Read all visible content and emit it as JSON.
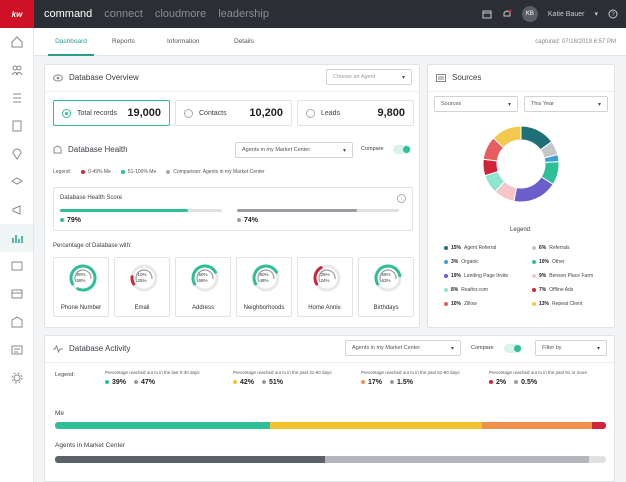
{
  "topbar": {
    "logo": "kw",
    "nav": [
      "command",
      "connect",
      "cloudmore",
      "leadership"
    ],
    "user": "Katie Bauer",
    "initials": "KB"
  },
  "tabs": [
    "Dashboard",
    "Reports",
    "Information",
    "Details"
  ],
  "captured": "captured: 07/18/2019 6:57 PM",
  "overview": {
    "title": "Database Overview",
    "agent_select": "Choose an Agent",
    "total_label": "Total records",
    "total_value": "19,000",
    "contacts_label": "Contacts",
    "contacts_value": "10,200",
    "leads_label": "Leads",
    "leads_value": "9,800"
  },
  "health": {
    "title": "Database Health",
    "select": "Agents in my Market Center",
    "compare": "Compare",
    "legend_label": "Legend:",
    "legend_items": [
      "0-49% Me",
      "51-100% Me",
      "Comparison: Agents in my Market Center"
    ],
    "score_title": "Database Health Score",
    "score_me": "79%",
    "score_cmp": "74%",
    "score_me_fraction": 0.79,
    "score_cmp_fraction": 0.74,
    "with_title": "Percentage of Database with:",
    "gauges": [
      {
        "label": "Phone Number",
        "a": "90%",
        "b": "58%",
        "color": "#2fbf98",
        "frac": 0.9
      },
      {
        "label": "Email",
        "a": "10%",
        "b": "25%",
        "color": "#d0243b",
        "frac": 0.1
      },
      {
        "label": "Address",
        "a": "50%",
        "b": "58%",
        "color": "#2fbf98",
        "frac": 0.5
      },
      {
        "label": "Neighborhoods",
        "a": "50%",
        "b": "48%",
        "color": "#2fbf98",
        "frac": 0.5
      },
      {
        "label": "Home Anniv.",
        "a": "25%",
        "b": "24%",
        "color": "#d0243b",
        "frac": 0.25
      },
      {
        "label": "Birthdays",
        "a": "55%",
        "b": "63%",
        "color": "#2fbf98",
        "frac": 0.55
      }
    ]
  },
  "sources": {
    "title": "Sources",
    "select1": "Sources",
    "select2": "This Year",
    "legend_title": "Legend:",
    "items": [
      {
        "pct": "15%",
        "name": "Agent Referral",
        "color": "#1f6f78"
      },
      {
        "pct": "6%",
        "name": "Referrals",
        "color": "#c4c7ca"
      },
      {
        "pct": "3%",
        "name": "Organic",
        "color": "#3b9ed6"
      },
      {
        "pct": "10%",
        "name": "Other",
        "color": "#2fbf98"
      },
      {
        "pct": "19%",
        "name": "Landing Page Invite",
        "color": "#6a5ecb"
      },
      {
        "pct": "9%",
        "name": "Benson Place Farm",
        "color": "#f7c6c9"
      },
      {
        "pct": "8%",
        "name": "Realtor.com",
        "color": "#8ee6cf"
      },
      {
        "pct": "7%",
        "name": "Offline Ads",
        "color": "#d0243b"
      },
      {
        "pct": "10%",
        "name": "Zillow",
        "color": "#e85d5d"
      },
      {
        "pct": "13%",
        "name": "Repeat Client",
        "color": "#f2c94c"
      }
    ]
  },
  "activity": {
    "title": "Database Activity",
    "select": "Agents in my Market Center",
    "compare": "Compare",
    "filter": "Filter by",
    "legend_label": "Legend:",
    "groups": [
      {
        "desc": "Percentage reached out to in the last 0-30 days",
        "me": "39%",
        "cmp": "47%",
        "color": "#2fbf98"
      },
      {
        "desc": "Percentage reached out to in the past 31-60 days",
        "me": "42%",
        "cmp": "51%",
        "color": "#f2c230"
      },
      {
        "desc": "Percentage reached out to in the past 61-90 days",
        "me": "17%",
        "cmp": "1.5%",
        "color": "#f0924c"
      },
      {
        "desc": "Percentage reached out to in the past 91 or more",
        "me": "2%",
        "cmp": "0.5%",
        "color": "#d0243b"
      }
    ],
    "me_label": "Me",
    "mc_label": "Agents in Market Center"
  }
}
